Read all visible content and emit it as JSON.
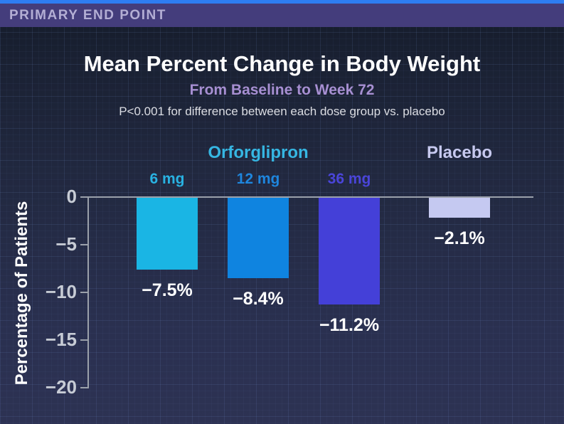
{
  "header": {
    "label": "PRIMARY END POINT",
    "band_color": "#443d7c",
    "strip_color": "#2e7df2",
    "text_color": "#b3aed4"
  },
  "titles": {
    "main": "Mean Percent Change in Body Weight",
    "subtitle": "From Baseline to Week 72",
    "subtitle_color": "#a78fd2",
    "note": "P<0.001 for difference between each dose group vs. placebo"
  },
  "groups": [
    {
      "label": "Orforglipron",
      "color": "#36b6e2"
    },
    {
      "label": "Placebo",
      "color": "#c7c9ef"
    }
  ],
  "chart_data": {
    "type": "bar",
    "categories": [
      "6 mg",
      "12 mg",
      "36 mg",
      "Placebo"
    ],
    "values": [
      -7.5,
      -8.4,
      -11.2,
      -2.1
    ],
    "value_labels": [
      "−7.5%",
      "−8.4%",
      "−11.2%",
      "−2.1%"
    ],
    "dose_labels": [
      "6 mg",
      "12 mg",
      "36 mg"
    ],
    "dose_label_colors": [
      "#29b2e2",
      "#1e86de",
      "#4a45d9"
    ],
    "bar_colors": [
      "#1ab5e4",
      "#0f84e0",
      "#4440d8",
      "#c5c9f1"
    ],
    "title": "Mean Percent Change in Body Weight",
    "xlabel": "",
    "ylabel": "Percentage of Patients",
    "ylim": [
      -20,
      0
    ],
    "yticks": {
      "values": [
        0,
        -5,
        -10,
        -15,
        -20
      ],
      "labels": [
        "0",
        "−5",
        "−10",
        "−15",
        "−20"
      ]
    },
    "grid": false,
    "axis_color": "#9ba1ab"
  }
}
